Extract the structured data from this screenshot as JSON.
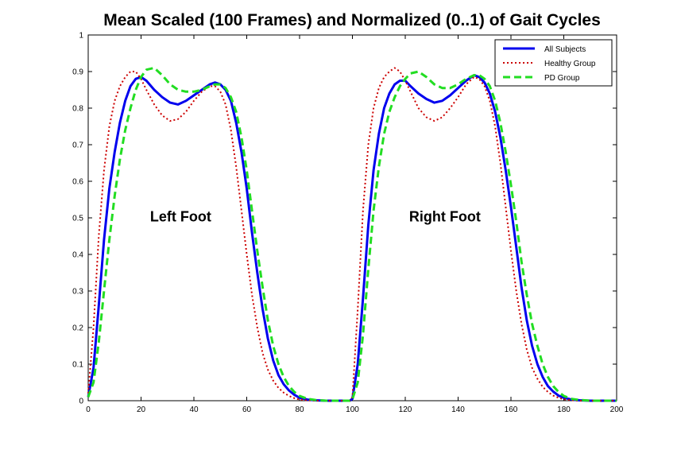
{
  "chart_data": {
    "type": "line",
    "title": "Mean Scaled (100 Frames) and Normalized (0..1) of Gait Cycles",
    "xlabel": "",
    "ylabel": "",
    "xlim": [
      0,
      200
    ],
    "ylim": [
      0,
      1
    ],
    "x_ticks": [
      0,
      20,
      40,
      60,
      80,
      100,
      120,
      140,
      160,
      180,
      200
    ],
    "y_ticks": [
      0,
      0.1,
      0.2,
      0.3,
      0.4,
      0.5,
      0.6,
      0.7,
      0.8,
      0.9,
      1
    ],
    "grid": false,
    "legend_position": "top-right",
    "annotations": [
      {
        "text": "Left Foot",
        "x": 35,
        "y": 0.49
      },
      {
        "text": "Right Foot",
        "x": 135,
        "y": 0.49
      }
    ],
    "series": [
      {
        "name": "All Subjects",
        "color": "#0000ee",
        "style": "solid",
        "x": [
          0,
          2,
          4,
          6,
          8,
          10,
          12,
          14,
          16,
          18,
          20,
          22,
          25,
          28,
          31,
          34,
          37,
          40,
          43,
          46,
          48,
          50,
          52,
          54,
          56,
          58,
          60,
          62,
          64,
          66,
          68,
          70,
          72,
          74,
          76,
          78,
          80,
          83,
          86,
          90,
          95,
          99,
          100,
          102,
          104,
          106,
          108,
          110,
          112,
          114,
          116,
          118,
          120,
          122,
          125,
          128,
          131,
          134,
          137,
          140,
          143,
          146,
          148,
          150,
          152,
          154,
          156,
          158,
          160,
          162,
          164,
          166,
          168,
          170,
          172,
          174,
          176,
          178,
          180,
          183,
          186,
          190,
          195,
          200
        ],
        "y": [
          0.01,
          0.09,
          0.26,
          0.44,
          0.58,
          0.68,
          0.76,
          0.82,
          0.86,
          0.88,
          0.885,
          0.875,
          0.85,
          0.83,
          0.815,
          0.81,
          0.82,
          0.835,
          0.85,
          0.865,
          0.87,
          0.865,
          0.85,
          0.82,
          0.76,
          0.68,
          0.58,
          0.46,
          0.35,
          0.25,
          0.17,
          0.11,
          0.07,
          0.045,
          0.028,
          0.016,
          0.008,
          0.003,
          0.001,
          0,
          0,
          0,
          0.005,
          0.1,
          0.28,
          0.48,
          0.63,
          0.73,
          0.8,
          0.84,
          0.865,
          0.875,
          0.875,
          0.86,
          0.84,
          0.825,
          0.815,
          0.82,
          0.835,
          0.855,
          0.875,
          0.89,
          0.885,
          0.87,
          0.84,
          0.79,
          0.72,
          0.63,
          0.53,
          0.42,
          0.31,
          0.22,
          0.15,
          0.1,
          0.065,
          0.04,
          0.025,
          0.014,
          0.008,
          0.003,
          0.001,
          0,
          0,
          0
        ]
      },
      {
        "name": "Healthy Group",
        "color": "#cc0000",
        "style": "dotted",
        "x": [
          0,
          2,
          4,
          6,
          8,
          10,
          12,
          14,
          16,
          18,
          20,
          22,
          25,
          28,
          31,
          34,
          37,
          40,
          43,
          46,
          48,
          50,
          52,
          54,
          56,
          58,
          60,
          62,
          64,
          66,
          68,
          70,
          72,
          74,
          76,
          78,
          80,
          83,
          86,
          90,
          95,
          99,
          100,
          102,
          104,
          106,
          108,
          110,
          112,
          114,
          116,
          118,
          120,
          122,
          125,
          128,
          131,
          134,
          137,
          140,
          143,
          146,
          148,
          150,
          152,
          154,
          156,
          158,
          160,
          162,
          164,
          166,
          168,
          170,
          172,
          174,
          176,
          178,
          180,
          183,
          186,
          190,
          195,
          200
        ],
        "y": [
          0.02,
          0.2,
          0.45,
          0.63,
          0.75,
          0.82,
          0.86,
          0.885,
          0.9,
          0.9,
          0.88,
          0.85,
          0.81,
          0.78,
          0.765,
          0.77,
          0.79,
          0.82,
          0.845,
          0.86,
          0.86,
          0.845,
          0.81,
          0.74,
          0.64,
          0.52,
          0.4,
          0.29,
          0.2,
          0.13,
          0.085,
          0.055,
          0.035,
          0.022,
          0.013,
          0.007,
          0.003,
          0.001,
          0,
          0,
          0,
          0,
          0.01,
          0.25,
          0.52,
          0.7,
          0.8,
          0.855,
          0.885,
          0.9,
          0.91,
          0.9,
          0.875,
          0.845,
          0.8,
          0.775,
          0.765,
          0.775,
          0.8,
          0.83,
          0.865,
          0.885,
          0.88,
          0.86,
          0.82,
          0.75,
          0.65,
          0.53,
          0.41,
          0.3,
          0.21,
          0.14,
          0.09,
          0.06,
          0.038,
          0.024,
          0.014,
          0.008,
          0.004,
          0.001,
          0,
          0,
          0,
          0
        ]
      },
      {
        "name": "PD Group",
        "color": "#22dd22",
        "style": "dashed",
        "x": [
          0,
          2,
          4,
          6,
          8,
          10,
          12,
          14,
          16,
          18,
          20,
          22,
          25,
          28,
          31,
          34,
          37,
          40,
          43,
          46,
          48,
          50,
          52,
          54,
          56,
          58,
          60,
          62,
          64,
          66,
          68,
          70,
          72,
          74,
          76,
          78,
          80,
          83,
          86,
          90,
          95,
          99,
          100,
          102,
          104,
          106,
          108,
          110,
          112,
          114,
          116,
          118,
          120,
          122,
          125,
          128,
          131,
          134,
          137,
          140,
          143,
          146,
          148,
          150,
          152,
          154,
          156,
          158,
          160,
          162,
          164,
          166,
          168,
          170,
          172,
          174,
          176,
          178,
          180,
          183,
          186,
          190,
          195,
          200
        ],
        "y": [
          0.01,
          0.05,
          0.16,
          0.3,
          0.44,
          0.56,
          0.66,
          0.74,
          0.8,
          0.85,
          0.885,
          0.905,
          0.91,
          0.89,
          0.865,
          0.85,
          0.845,
          0.845,
          0.85,
          0.86,
          0.865,
          0.865,
          0.855,
          0.83,
          0.79,
          0.72,
          0.63,
          0.52,
          0.41,
          0.31,
          0.22,
          0.15,
          0.1,
          0.065,
          0.04,
          0.024,
          0.013,
          0.005,
          0.002,
          0,
          0,
          0,
          0.004,
          0.05,
          0.18,
          0.36,
          0.52,
          0.64,
          0.73,
          0.79,
          0.83,
          0.86,
          0.88,
          0.895,
          0.9,
          0.885,
          0.865,
          0.855,
          0.855,
          0.865,
          0.88,
          0.89,
          0.89,
          0.88,
          0.86,
          0.82,
          0.76,
          0.68,
          0.59,
          0.49,
          0.38,
          0.29,
          0.21,
          0.15,
          0.1,
          0.065,
          0.04,
          0.024,
          0.013,
          0.005,
          0.002,
          0,
          0,
          0
        ]
      }
    ]
  }
}
